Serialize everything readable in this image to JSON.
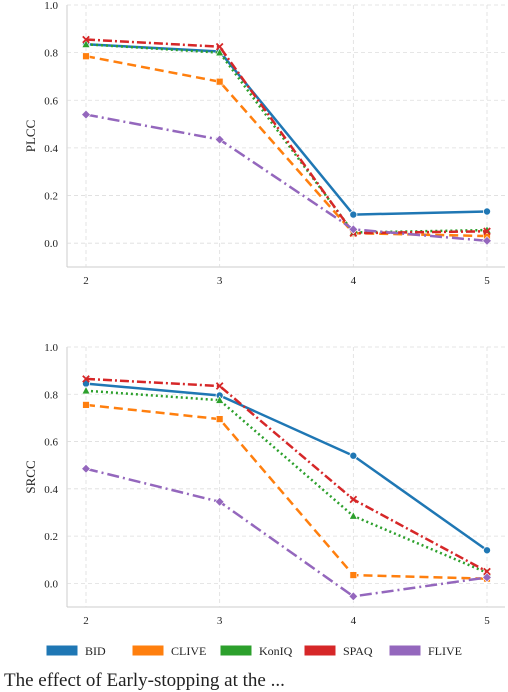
{
  "colors": {
    "BID": "#1f77b4",
    "CLIVE": "#ff7f0e",
    "KonIQ": "#2ca02c",
    "SPAQ": "#d62728",
    "FLIVE": "#9467bd",
    "grid": "#dddddd",
    "axis": "#cccccc"
  },
  "caption": "The effect of Early-stopping at the ...",
  "legend": [
    "BID",
    "CLIVE",
    "KonIQ",
    "SPAQ",
    "FLIVE"
  ],
  "chart_data": [
    {
      "type": "line",
      "ylabel": "PLCC",
      "xlabel": "",
      "x": [
        2,
        3,
        4,
        5
      ],
      "xticks": [
        "2",
        "3",
        "4",
        "5"
      ],
      "yticks": [
        "0.0",
        "0.2",
        "0.4",
        "0.6",
        "0.8",
        "1.0"
      ],
      "ylim": [
        -0.1,
        1.0
      ],
      "grid": true,
      "series": [
        {
          "name": "BID",
          "values": [
            0.835,
            0.805,
            0.12,
            0.133
          ],
          "style": "solid",
          "marker": "circle"
        },
        {
          "name": "CLIVE",
          "values": [
            0.785,
            0.678,
            0.042,
            0.03
          ],
          "style": "dashed",
          "marker": "square"
        },
        {
          "name": "KonIQ",
          "values": [
            0.835,
            0.8,
            0.045,
            0.055
          ],
          "style": "dotted",
          "marker": "triangle"
        },
        {
          "name": "SPAQ",
          "values": [
            0.855,
            0.825,
            0.042,
            0.05
          ],
          "style": "dashdot",
          "marker": "x"
        },
        {
          "name": "FLIVE",
          "values": [
            0.54,
            0.435,
            0.058,
            0.01
          ],
          "style": "dashdotlong",
          "marker": "diamond"
        }
      ]
    },
    {
      "type": "line",
      "ylabel": "SRCC",
      "xlabel": "",
      "x": [
        2,
        3,
        4,
        5
      ],
      "xticks": [
        "2",
        "3",
        "4",
        "5"
      ],
      "yticks": [
        "0.0",
        "0.2",
        "0.4",
        "0.6",
        "0.8",
        "1.0"
      ],
      "ylim": [
        -0.1,
        1.0
      ],
      "grid": true,
      "series": [
        {
          "name": "BID",
          "values": [
            0.845,
            0.795,
            0.54,
            0.14
          ],
          "style": "solid",
          "marker": "circle"
        },
        {
          "name": "CLIVE",
          "values": [
            0.755,
            0.695,
            0.035,
            0.02
          ],
          "style": "dashed",
          "marker": "square"
        },
        {
          "name": "KonIQ",
          "values": [
            0.815,
            0.775,
            0.285,
            0.045
          ],
          "style": "dotted",
          "marker": "triangle"
        },
        {
          "name": "SPAQ",
          "values": [
            0.865,
            0.835,
            0.355,
            0.05
          ],
          "style": "dashdot",
          "marker": "x"
        },
        {
          "name": "FLIVE",
          "values": [
            0.485,
            0.345,
            -0.055,
            0.025
          ],
          "style": "dashdotlong",
          "marker": "diamond"
        }
      ]
    }
  ]
}
